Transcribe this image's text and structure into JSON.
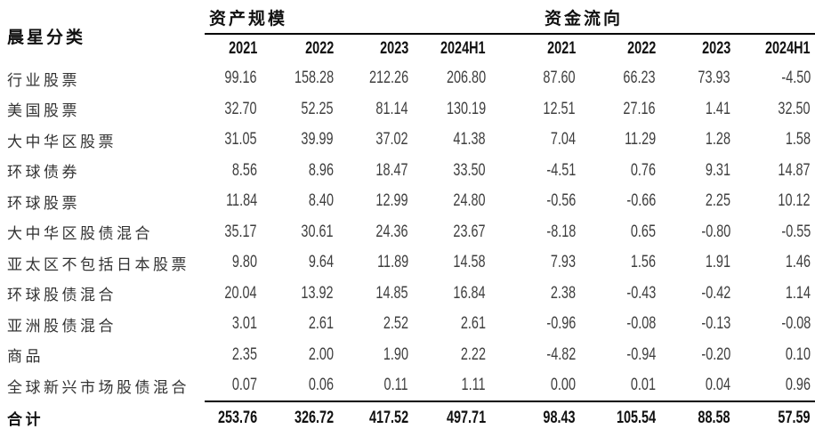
{
  "page": {
    "background_color": "#ffffff",
    "rule_color": "#000000",
    "header_text_color": "#111111",
    "body_text_color": "#3f3f3f"
  },
  "table": {
    "category_header": "晨星分类",
    "groups": [
      {
        "label": "资产规模",
        "years": [
          "2021",
          "2022",
          "2023",
          "2024H1"
        ]
      },
      {
        "label": "资金流向",
        "years": [
          "2021",
          "2022",
          "2023",
          "2024H1"
        ]
      }
    ],
    "rows": [
      {
        "label": "行业股票",
        "asset_scale": [
          "99.16",
          "158.28",
          "212.26",
          "206.80"
        ],
        "fund_flow": [
          "87.60",
          "66.23",
          "73.93",
          "-4.50"
        ]
      },
      {
        "label": "美国股票",
        "asset_scale": [
          "32.70",
          "52.25",
          "81.14",
          "130.19"
        ],
        "fund_flow": [
          "12.51",
          "27.16",
          "1.41",
          "32.50"
        ]
      },
      {
        "label": "大中华区股票",
        "asset_scale": [
          "31.05",
          "39.99",
          "37.02",
          "41.38"
        ],
        "fund_flow": [
          "7.04",
          "11.29",
          "1.28",
          "1.58"
        ]
      },
      {
        "label": "环球债券",
        "asset_scale": [
          "8.56",
          "8.96",
          "18.47",
          "33.50"
        ],
        "fund_flow": [
          "-4.51",
          "0.76",
          "9.31",
          "14.87"
        ]
      },
      {
        "label": "环球股票",
        "asset_scale": [
          "11.84",
          "8.40",
          "12.99",
          "24.80"
        ],
        "fund_flow": [
          "-0.56",
          "-0.66",
          "2.25",
          "10.12"
        ]
      },
      {
        "label": "大中华区股债混合",
        "asset_scale": [
          "35.17",
          "30.61",
          "24.36",
          "23.67"
        ],
        "fund_flow": [
          "-8.18",
          "0.65",
          "-0.80",
          "-0.55"
        ]
      },
      {
        "label": "亚太区不包括日本股票",
        "asset_scale": [
          "9.80",
          "9.64",
          "11.89",
          "14.58"
        ],
        "fund_flow": [
          "7.93",
          "1.56",
          "1.91",
          "1.46"
        ]
      },
      {
        "label": "环球股债混合",
        "asset_scale": [
          "20.04",
          "13.92",
          "14.85",
          "16.84"
        ],
        "fund_flow": [
          "2.38",
          "-0.43",
          "-0.42",
          "1.14"
        ]
      },
      {
        "label": "亚洲股债混合",
        "asset_scale": [
          "3.01",
          "2.61",
          "2.52",
          "2.61"
        ],
        "fund_flow": [
          "-0.96",
          "-0.08",
          "-0.13",
          "-0.08"
        ]
      },
      {
        "label": "商品",
        "asset_scale": [
          "2.35",
          "2.00",
          "1.90",
          "2.22"
        ],
        "fund_flow": [
          "-4.82",
          "-0.94",
          "-0.20",
          "0.10"
        ]
      },
      {
        "label": "全球新兴市场股债混合",
        "asset_scale": [
          "0.07",
          "0.06",
          "0.11",
          "1.11"
        ],
        "fund_flow": [
          "0.00",
          "0.01",
          "0.04",
          "0.96"
        ]
      }
    ],
    "total": {
      "label": "合计",
      "asset_scale": [
        "253.76",
        "326.72",
        "417.52",
        "497.71"
      ],
      "fund_flow": [
        "98.43",
        "105.54",
        "88.58",
        "57.59"
      ]
    }
  },
  "chart_data": {
    "type": "table",
    "row_header": "晨星分类",
    "column_groups": [
      "资产规模",
      "资金流向"
    ],
    "columns": [
      "资产规模 2021",
      "资产规模 2022",
      "资产规模 2023",
      "资产规模 2024H1",
      "资金流向 2021",
      "资金流向 2022",
      "资金流向 2023",
      "资金流向 2024H1"
    ],
    "rows": [
      [
        "行业股票",
        99.16,
        158.28,
        212.26,
        206.8,
        87.6,
        66.23,
        73.93,
        -4.5
      ],
      [
        "美国股票",
        32.7,
        52.25,
        81.14,
        130.19,
        12.51,
        27.16,
        1.41,
        32.5
      ],
      [
        "大中华区股票",
        31.05,
        39.99,
        37.02,
        41.38,
        7.04,
        11.29,
        1.28,
        1.58
      ],
      [
        "环球债券",
        8.56,
        8.96,
        18.47,
        33.5,
        -4.51,
        0.76,
        9.31,
        14.87
      ],
      [
        "环球股票",
        11.84,
        8.4,
        12.99,
        24.8,
        -0.56,
        -0.66,
        2.25,
        10.12
      ],
      [
        "大中华区股债混合",
        35.17,
        30.61,
        24.36,
        23.67,
        -8.18,
        0.65,
        -0.8,
        -0.55
      ],
      [
        "亚太区不包括日本股票",
        9.8,
        9.64,
        11.89,
        14.58,
        7.93,
        1.56,
        1.91,
        1.46
      ],
      [
        "环球股债混合",
        20.04,
        13.92,
        14.85,
        16.84,
        2.38,
        -0.43,
        -0.42,
        1.14
      ],
      [
        "亚洲股债混合",
        3.01,
        2.61,
        2.52,
        2.61,
        -0.96,
        -0.08,
        -0.13,
        -0.08
      ],
      [
        "商品",
        2.35,
        2.0,
        1.9,
        2.22,
        -4.82,
        -0.94,
        -0.2,
        0.1
      ],
      [
        "全球新兴市场股债混合",
        0.07,
        0.06,
        0.11,
        1.11,
        0.0,
        0.01,
        0.04,
        0.96
      ]
    ],
    "total_row": [
      "合计",
      253.76,
      326.72,
      417.52,
      497.71,
      98.43,
      105.54,
      88.58,
      57.59
    ]
  }
}
